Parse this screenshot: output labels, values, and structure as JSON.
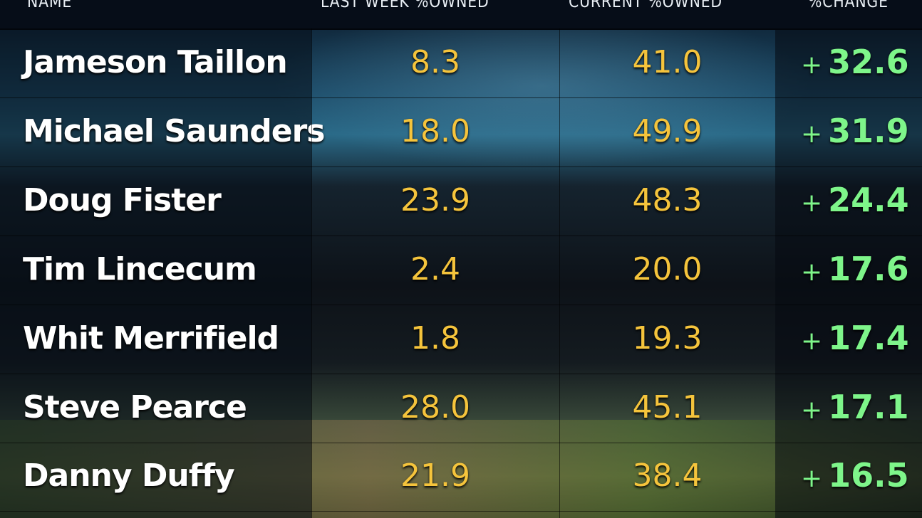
{
  "headers": {
    "name": "NAME",
    "last_week": "LAST WEEK %OWNED",
    "current": "CURRENT %OWNED",
    "change": "%CHANGE"
  },
  "rows": [
    {
      "name": "Jameson Taillon",
      "last_week": "8.3",
      "current": "41.0",
      "sign": "+",
      "change": "32.6"
    },
    {
      "name": "Michael Saunders",
      "last_week": "18.0",
      "current": "49.9",
      "sign": "+",
      "change": "31.9"
    },
    {
      "name": "Doug Fister",
      "last_week": "23.9",
      "current": "48.3",
      "sign": "+",
      "change": "24.4"
    },
    {
      "name": "Tim Lincecum",
      "last_week": "2.4",
      "current": "20.0",
      "sign": "+",
      "change": "17.6"
    },
    {
      "name": "Whit Merrifield",
      "last_week": "1.8",
      "current": "19.3",
      "sign": "+",
      "change": "17.4"
    },
    {
      "name": "Steve Pearce",
      "last_week": "28.0",
      "current": "45.1",
      "sign": "+",
      "change": "17.1"
    },
    {
      "name": "Danny Duffy",
      "last_week": "21.9",
      "current": "38.4",
      "sign": "+",
      "change": "16.5"
    }
  ],
  "colors": {
    "name": "#ffffff",
    "values": "#f5c43c",
    "change": "#7ef58a"
  }
}
